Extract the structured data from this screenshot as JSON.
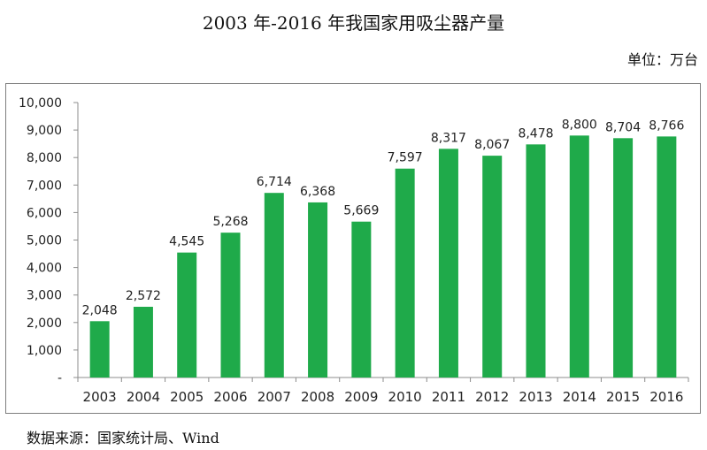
{
  "chart_data": {
    "type": "bar",
    "title": "2003 年-2016 年我国家用吸尘器产量",
    "unit_label": "单位：万台",
    "source": "数据来源：国家统计局、Wind",
    "categories": [
      "2003",
      "2004",
      "2005",
      "2006",
      "2007",
      "2008",
      "2009",
      "2010",
      "2011",
      "2012",
      "2013",
      "2014",
      "2015",
      "2016"
    ],
    "values": [
      2048,
      2572,
      4545,
      5268,
      6714,
      6368,
      5669,
      7597,
      8317,
      8067,
      8478,
      8800,
      8704,
      8766
    ],
    "value_labels": [
      "2,048",
      "2,572",
      "4,545",
      "5,268",
      "6,714",
      "6,368",
      "5,669",
      "7,597",
      "8,317",
      "8,067",
      "8,478",
      "8,800",
      "8,704",
      "8,766"
    ],
    "ylim": [
      0,
      10000
    ],
    "yticks": [
      0,
      1000,
      2000,
      3000,
      4000,
      5000,
      6000,
      7000,
      8000,
      9000,
      10000
    ],
    "ytick_labels": [
      "-",
      "1,000",
      "2,000",
      "3,000",
      "4,000",
      "5,000",
      "6,000",
      "7,000",
      "8,000",
      "9,000",
      "10,000"
    ],
    "xlabel": "",
    "ylabel": "",
    "grid": false,
    "legend": "none",
    "bar_color": "#1faa4a"
  }
}
